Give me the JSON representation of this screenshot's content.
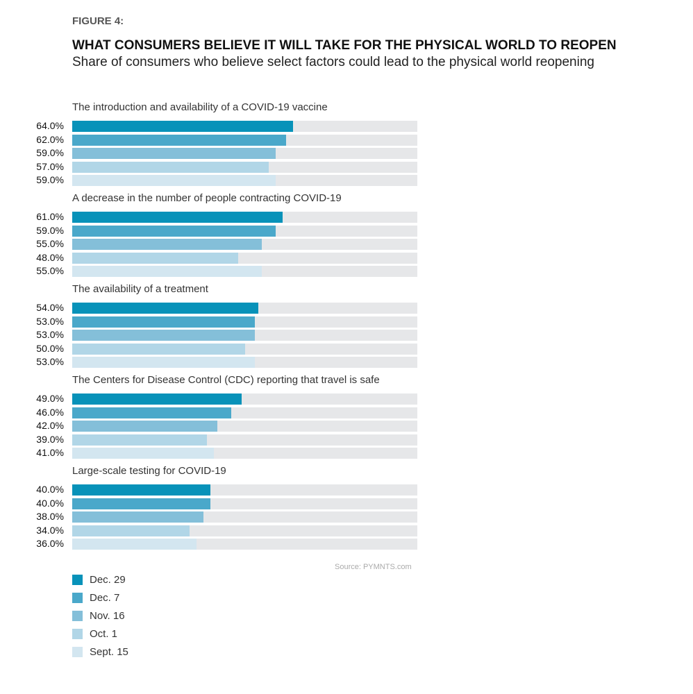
{
  "figure_label": "FIGURE 4:",
  "chart_data": {
    "type": "bar",
    "orientation": "horizontal",
    "title": "WHAT CONSUMERS BELIEVE IT WILL TAKE FOR THE PHYSICAL WORLD TO REOPEN",
    "subtitle": "Share of consumers who believe select factors could lead to the physical world reopening",
    "xlim": [
      0,
      100
    ],
    "unit": "%",
    "series_names": [
      "Dec. 29",
      "Dec. 7",
      "Nov. 16",
      "Oct. 1",
      "Sept. 15"
    ],
    "colors": [
      "#0892b9",
      "#4aa8ca",
      "#84bfd9",
      "#b1d6e7",
      "#d3e6f0"
    ],
    "groups": [
      {
        "label": "The introduction and availability of a COVID-19 vaccine",
        "values": [
          64.0,
          62.0,
          59.0,
          57.0,
          59.0
        ],
        "labels": [
          "64.0%",
          "62.0%",
          "59.0%",
          "57.0%",
          "59.0%"
        ]
      },
      {
        "label": "A decrease in the number of people contracting COVID-19",
        "values": [
          61.0,
          59.0,
          55.0,
          48.0,
          55.0
        ],
        "labels": [
          "61.0%",
          "59.0%",
          "55.0%",
          "48.0%",
          "55.0%"
        ]
      },
      {
        "label": "The availability of a treatment",
        "values": [
          54.0,
          53.0,
          53.0,
          50.0,
          53.0
        ],
        "labels": [
          "54.0%",
          "53.0%",
          "53.0%",
          "50.0%",
          "53.0%"
        ]
      },
      {
        "label": "The Centers for Disease Control (CDC) reporting that travel is safe",
        "values": [
          49.0,
          46.0,
          42.0,
          39.0,
          41.0
        ],
        "labels": [
          "49.0%",
          "46.0%",
          "42.0%",
          "39.0%",
          "41.0%"
        ]
      },
      {
        "label": "Large-scale testing for COVID-19",
        "values": [
          40.0,
          40.0,
          38.0,
          34.0,
          36.0
        ],
        "labels": [
          "40.0%",
          "40.0%",
          "38.0%",
          "34.0%",
          "36.0%"
        ]
      }
    ],
    "legend": [
      "Dec. 29",
      "Dec. 7",
      "Nov. 16",
      "Oct. 1",
      "Sept. 15"
    ],
    "legend_placement": "bottom-left",
    "source": "Source: PYMNTS.com"
  }
}
